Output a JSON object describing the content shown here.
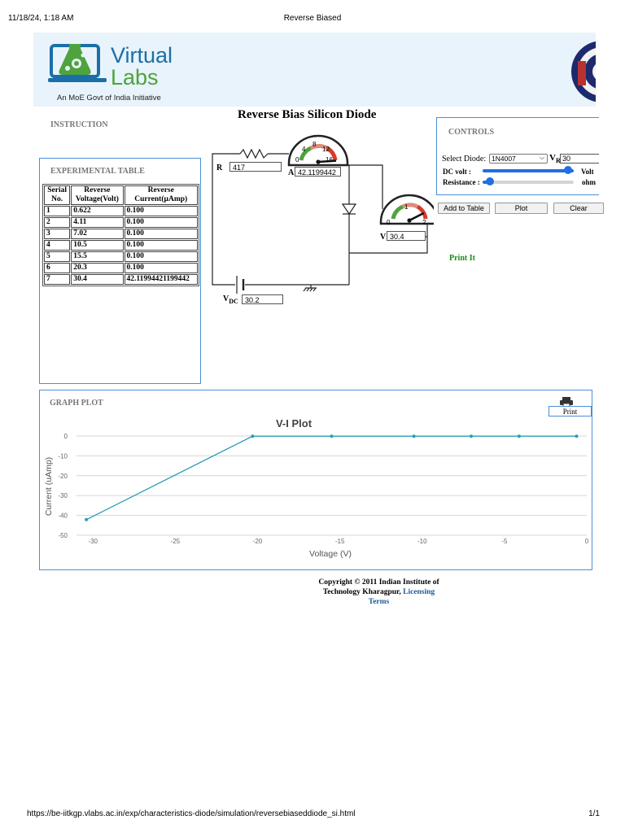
{
  "print_header": {
    "datetime": "11/18/24, 1:18 AM",
    "doc_title": "Reverse Biased"
  },
  "print_footer": {
    "url": "https://be-iitkgp.vlabs.ac.in/exp/characteristics-diode/simulation/reversebiaseddiode_si.html",
    "page": "1/1"
  },
  "banner": {
    "logo_word_1": "Virtual",
    "logo_word_2": "Labs",
    "tagline": "An MoE Govt of India Initiative"
  },
  "page_title": "Reverse Bias Silicon Diode",
  "instruction_label": "INSTRUCTION",
  "experiment_table": {
    "heading": "EXPERIMENTAL TABLE",
    "columns": [
      [
        "Serial",
        "No."
      ],
      [
        "Reverse",
        "Voltage(Volt)"
      ],
      [
        "Reverse",
        "Current(µAmp)"
      ]
    ],
    "rows": [
      [
        "1",
        "0.622",
        "0.100"
      ],
      [
        "2",
        "4.11",
        "0.100"
      ],
      [
        "3",
        "7.02",
        "0.100"
      ],
      [
        "4",
        "10.5",
        "0.100"
      ],
      [
        "5",
        "15.5",
        "0.100"
      ],
      [
        "6",
        "20.3",
        "0.100"
      ],
      [
        "7",
        "30.4",
        "42.11994421199442"
      ]
    ]
  },
  "circuit": {
    "r_label": "R",
    "r_value": "417",
    "ammeter_label": "A",
    "ammeter_value": "42.1199442",
    "ammeter_ticks": [
      "0",
      "4",
      "8",
      "12",
      "16"
    ],
    "ammeter_reading_fraction": 0.98,
    "voltmeter_label": "V",
    "voltmeter_value": "30.4",
    "voltmeter_ticks": [
      "0",
      "1",
      "2"
    ],
    "voltmeter_reading_fraction": 0.85,
    "vdc_label": "V",
    "vdc_sub": "DC",
    "vdc_value": "30.2"
  },
  "controls": {
    "heading": "CONTROLS",
    "select_diode_label": "Select Diode:",
    "selected_diode": "1N4007",
    "vr_label": "V",
    "vr_sub": "R",
    "vr_value": "30",
    "dc_volt_label": "DC volt :",
    "dc_volt_unit": "Volt",
    "dc_volt_fraction": 0.94,
    "resistance_label": "Resistance :",
    "resistance_unit": "ohm",
    "resistance_fraction": 0.08,
    "add_button": "Add to Table",
    "plot_button": "Plot",
    "clear_button": "Clear"
  },
  "print_it_label": "Print It",
  "graph": {
    "heading": "GRAPH PLOT",
    "print_button": "Print"
  },
  "chart_data": {
    "type": "line",
    "title": "V-I Plot",
    "xlabel": "Voltage (V)",
    "ylabel": "Current (uAmp)",
    "xlim": [
      -31,
      0
    ],
    "ylim": [
      -50,
      0
    ],
    "x_ticks": [
      -30,
      -25,
      -20,
      -15,
      -10,
      -5,
      0
    ],
    "y_ticks": [
      0,
      -10,
      -20,
      -30,
      -40,
      -50
    ],
    "series": [
      {
        "x": [
          -30.4,
          -20.3,
          -15.5,
          -10.5,
          -7.02,
          -4.11,
          -0.622
        ],
        "y": [
          -42.12,
          -0.1,
          -0.1,
          -0.1,
          -0.1,
          -0.1,
          -0.1
        ]
      }
    ],
    "grid": true,
    "line_color": "#2a9db5"
  },
  "footer": {
    "copyright_line_1": "Copyright © 2011 Indian Institute of",
    "copyright_line_2": "Technology Kharagpur,",
    "licensing_link": "Licensing",
    "terms_link": "Terms"
  }
}
